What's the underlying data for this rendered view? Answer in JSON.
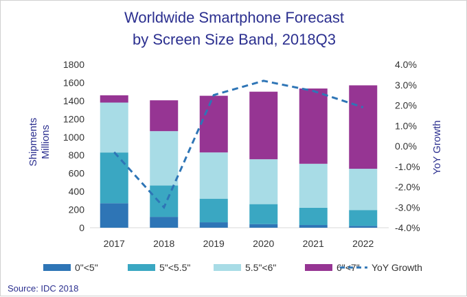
{
  "chart_data": {
    "type": "bar",
    "title_line1": "Worldwide Smartphone Forecast",
    "title_line2": "by Screen Size Band, 2018Q3",
    "ylabel_left_line1": "Shipments",
    "ylabel_left_line2": "Millions",
    "ylabel_right": "YoY Growth",
    "ylim": [
      0,
      1800
    ],
    "y2lim": [
      -4.0,
      4.0
    ],
    "yticks": [
      "0",
      "200",
      "400",
      "600",
      "800",
      "1000",
      "1200",
      "1400",
      "1600",
      "1800"
    ],
    "y2ticks": [
      "-4.0%",
      "-3.0%",
      "-2.0%",
      "-1.0%",
      "0.0%",
      "1.0%",
      "2.0%",
      "3.0%",
      "4.0%"
    ],
    "categories": [
      "2017",
      "2018",
      "2019",
      "2020",
      "2021",
      "2022"
    ],
    "series": [
      {
        "name": "0\"<5\"",
        "color": "#2e75b6",
        "values": [
          270,
          120,
          60,
          40,
          30,
          20
        ]
      },
      {
        "name": "5\"<5.5\"",
        "color": "#3aa7c2",
        "values": [
          560,
          345,
          260,
          220,
          190,
          175
        ]
      },
      {
        "name": "5.5\"<6\"",
        "color": "#a8dce6",
        "values": [
          550,
          600,
          510,
          495,
          485,
          455
        ]
      },
      {
        "name": "6\"<7\"",
        "color": "#963593",
        "values": [
          80,
          340,
          625,
          745,
          830,
          920
        ]
      }
    ],
    "line_series": {
      "name": "YoY Growth",
      "color": "#2e75b6",
      "values": [
        -0.3,
        -3.0,
        2.5,
        3.2,
        2.7,
        1.9
      ]
    },
    "source": "Source: IDC 2018"
  }
}
